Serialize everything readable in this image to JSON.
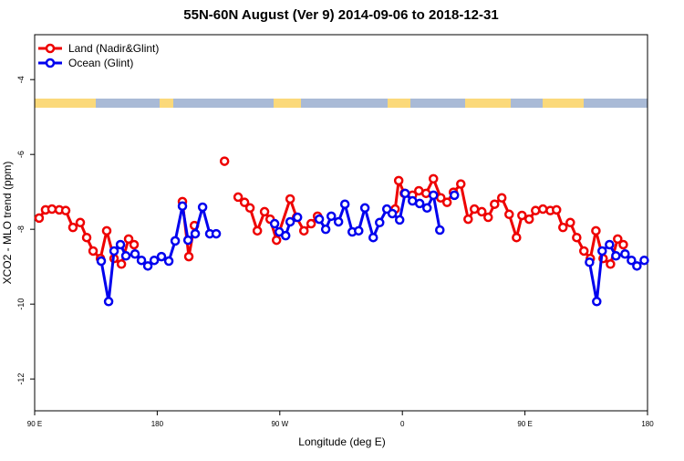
{
  "chart_data": {
    "type": "line",
    "title": "55N-60N August (Ver 9)   2014-09-06 to 2018-12-31",
    "x_label": "Longitude (deg E)",
    "y_label": "XCO2 - MLO trend (ppm)",
    "xlim": [
      90,
      540
    ],
    "xticks": [
      {
        "value": 90,
        "label": "90 E"
      },
      180,
      {
        "value": 270,
        "label": "90 W"
      },
      {
        "value": 360,
        "label": "0"
      },
      {
        "value": 450,
        "label": "90 E"
      },
      {
        "value": 540,
        "label": "180"
      }
    ],
    "ylim": [
      -12.85,
      -2.8
    ],
    "yticks": [
      -4,
      -6,
      -8,
      -10,
      -12
    ],
    "grid": false,
    "legend": "top-left",
    "series": [
      {
        "name": "Land (Nadir&Glint)",
        "color": "#ee0000",
        "x": [
          93.3,
          98.0,
          102.7,
          108.1,
          112.8,
          118.1,
          123.5,
          128.2,
          132.9,
          138.3,
          142.9,
          148.3,
          153.7,
          159.0,
          163.0,
          null,
          198.5,
          203.2,
          207.3,
          null,
          229.4,
          null,
          239.4,
          244.1,
          248.1,
          253.5,
          258.8,
          262.9,
          267.6,
          277.6,
          282.3,
          287.7,
          293.0,
          297.7,
          null,
          354.7,
          357.3,
          361.4,
          367.4,
          372.1,
          377.4,
          382.8,
          388.2,
          392.8,
          397.5,
          402.9,
          408.3,
          412.9,
          418.3,
          423.0,
          427.7,
          433.0,
          438.4,
          443.8,
          447.8,
          453.1,
          457.8,
          463.2,
          468.6,
          473.2,
          477.9,
          483.3,
          488.0,
          493.3,
          498.0,
          502.1,
          507.4,
          512.8,
          518.1,
          522.2
        ],
        "values": [
          -7.7,
          -7.48,
          -7.46,
          -7.48,
          -7.5,
          -7.95,
          -7.82,
          -8.22,
          -8.58,
          -8.78,
          -8.04,
          -8.78,
          -8.93,
          -8.26,
          -8.41,
          null,
          -7.26,
          -8.73,
          -7.9,
          null,
          -6.18,
          null,
          -7.14,
          -7.28,
          -7.43,
          -8.04,
          -7.53,
          -7.73,
          -8.29,
          -7.19,
          -7.68,
          -8.04,
          -7.85,
          -7.65,
          null,
          -7.46,
          -6.7,
          -7.04,
          -7.09,
          -6.97,
          -7.04,
          -6.65,
          -7.16,
          -7.28,
          -7.01,
          -6.79,
          -7.73,
          -7.46,
          -7.53,
          -7.68,
          -7.33,
          -7.16,
          -7.6,
          -8.22,
          -7.63,
          -7.73,
          -7.5,
          -7.46,
          -7.5,
          -7.48,
          -7.95,
          -7.82,
          -8.22,
          -8.58,
          -8.78,
          -8.04,
          -8.78,
          -8.93,
          -8.26,
          -8.41
        ]
      },
      {
        "name": "Ocean (Glint)",
        "color": "#0000ee",
        "x": [
          138.9,
          144.3,
          148.3,
          153.0,
          157.0,
          163.7,
          168.4,
          173.1,
          177.8,
          183.1,
          188.5,
          193.2,
          198.5,
          202.6,
          207.9,
          213.3,
          218.6,
          223.3,
          null,
          266.2,
          269.6,
          274.3,
          277.6,
          283.0,
          null,
          299.0,
          303.7,
          307.8,
          313.1,
          317.8,
          323.2,
          327.9,
          332.5,
          338.6,
          343.3,
          348.6,
          352.6,
          358.0,
          362.0,
          367.4,
          372.7,
          378.1,
          382.8,
          387.5,
          null,
          398.2,
          null,
          497.4,
          502.7,
          506.7,
          512.1,
          516.8,
          523.5,
          528.2,
          532.2,
          537.6
        ],
        "values": [
          -8.85,
          -9.93,
          -8.58,
          -8.41,
          -8.71,
          -8.66,
          -8.83,
          -8.98,
          -8.83,
          -8.73,
          -8.85,
          -8.31,
          -7.38,
          -8.29,
          -8.12,
          -7.41,
          -8.12,
          -8.12,
          null,
          -7.85,
          -8.07,
          -8.17,
          -7.8,
          -7.68,
          null,
          -7.73,
          -8.0,
          -7.65,
          -7.8,
          -7.33,
          -8.07,
          -8.04,
          -7.43,
          -8.22,
          -7.82,
          -7.46,
          -7.58,
          -7.75,
          -7.04,
          -7.24,
          -7.31,
          -7.43,
          -7.09,
          -8.02,
          null,
          -7.09,
          null,
          -8.88,
          -9.93,
          -8.58,
          -8.41,
          -8.71,
          -8.66,
          -8.83,
          -8.98,
          -8.83
        ]
      }
    ]
  }
}
